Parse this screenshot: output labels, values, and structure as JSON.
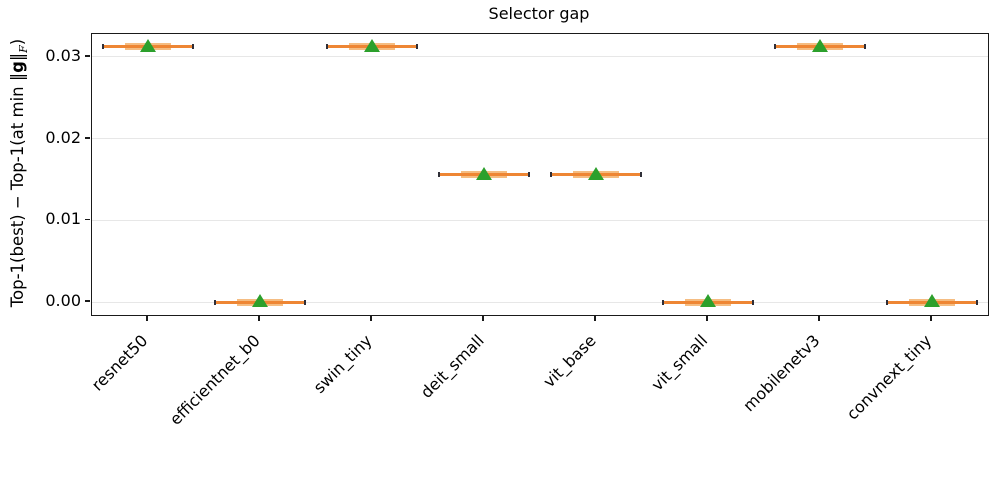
{
  "figure": {
    "title": "Selector gap",
    "ylabel_parts": {
      "pre": "Top-1(best) − Top-1(at min ‖",
      "bold_g": "g",
      "post": "‖",
      "sub": "F",
      "end": ")"
    }
  },
  "chart_data": {
    "type": "boxplot",
    "title": "Selector gap",
    "xlabel": "",
    "ylabel": "Top-1(best) − Top-1(at min ||g||_F)",
    "categories": [
      "resnet50",
      "efficientnet_b0",
      "swin_tiny",
      "deit_small",
      "vit_base",
      "vit_small",
      "mobilenetv3",
      "convnext_tiny"
    ],
    "series": [
      {
        "name": "median (orange line)",
        "values": [
          0.03125,
          0.0,
          0.03125,
          0.015625,
          0.015625,
          0.0,
          0.03125,
          0.0
        ]
      },
      {
        "name": "mean (green triangle)",
        "values": [
          0.03125,
          0.0,
          0.03125,
          0.015625,
          0.015625,
          0.0,
          0.03125,
          0.0
        ]
      }
    ],
    "yticks": [
      0.0,
      0.01,
      0.02,
      0.03
    ],
    "ytick_labels": [
      "0.00",
      "0.01",
      "0.02",
      "0.03"
    ],
    "ylim": [
      -0.0015625,
      0.0328125
    ],
    "grid": "horizontal",
    "legend": "none",
    "x_tick_rotation_deg": 45,
    "colors": {
      "whisker_median": "#ee8634",
      "box_fill": "#f5bd82",
      "cap": "#2f2f38",
      "mean_marker": "#2ca02c",
      "mean_marker_edge": "#8ed08e",
      "grid": "#e7e7e7",
      "spine": "#1a1a1a",
      "text": "#000000"
    }
  }
}
